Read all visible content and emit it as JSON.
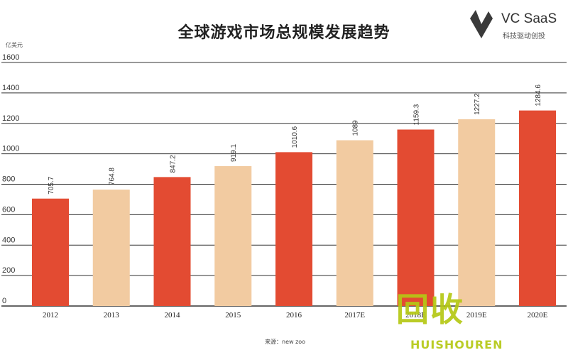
{
  "brand": {
    "name": "VC SaaS",
    "tagline": "科技驱动创投"
  },
  "watermark": {
    "big": "回收",
    "small": "HUISHOUREN"
  },
  "source_label": "来源：new zoo",
  "colors": {
    "actual": "#e34b32",
    "forecast": "#f2cba1",
    "grid": "#333333",
    "watermark": "#b4c814"
  },
  "chart_data": {
    "type": "bar",
    "title": "全球游戏市场总规模发展趋势",
    "ylabel": "亿美元",
    "ylim": [
      0,
      1600
    ],
    "yticks": [
      0,
      200,
      400,
      600,
      800,
      1000,
      1200,
      1400,
      1600
    ],
    "grid": true,
    "categories": [
      "2012",
      "2013",
      "2014",
      "2015",
      "2016",
      "2017E",
      "2018E",
      "2019E",
      "2020E"
    ],
    "values": [
      705.7,
      764.8,
      847.2,
      919.1,
      1010.6,
      1089,
      1159.3,
      1227.2,
      1284.6
    ],
    "value_labels": [
      "705.7",
      "764.8",
      "847.2",
      "919.1",
      "1010.6",
      "1089",
      "1159.3",
      "1227.2",
      "1284.6"
    ],
    "bar_colors": [
      "actual",
      "forecast",
      "actual",
      "forecast",
      "actual",
      "forecast",
      "actual",
      "forecast",
      "actual"
    ]
  }
}
